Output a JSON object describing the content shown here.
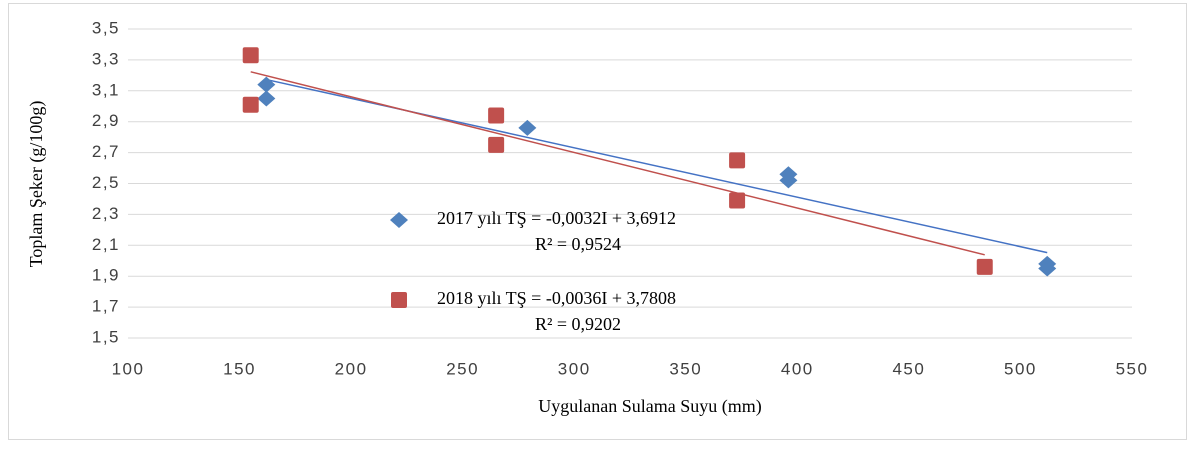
{
  "chart_data": {
    "type": "scatter",
    "xlabel": "Uygulanan Sulama Suyu (mm)",
    "ylabel": "Toplam Şeker (g/100g)",
    "xlim": [
      100,
      550
    ],
    "xticks": [
      100,
      150,
      200,
      250,
      300,
      350,
      400,
      450,
      500,
      550
    ],
    "ylim": [
      1.5,
      3.5
    ],
    "yticks": [
      {
        "value": 1.5,
        "label": "1,5"
      },
      {
        "value": 1.7,
        "label": "1,7"
      },
      {
        "value": 1.9,
        "label": "1,9"
      },
      {
        "value": 2.1,
        "label": "2,1"
      },
      {
        "value": 2.3,
        "label": "2,3"
      },
      {
        "value": 2.5,
        "label": "2,5"
      },
      {
        "value": 2.7,
        "label": "2,7"
      },
      {
        "value": 2.9,
        "label": "2,9"
      },
      {
        "value": 3.1,
        "label": "3,1"
      },
      {
        "value": 3.3,
        "label": "3,3"
      },
      {
        "value": 3.5,
        "label": "3,5"
      }
    ],
    "grid": true,
    "series": [
      {
        "name": "2017 yılı TŞ = -0,0032I + 3,6912",
        "color": "#4f81bd",
        "marker": "diamond",
        "trend_color": "#4472c4",
        "x": [
          162,
          162,
          279,
          396,
          396,
          512,
          512
        ],
        "values": [
          3.14,
          3.05,
          2.86,
          2.56,
          2.52,
          1.98,
          1.95
        ],
        "trendline": {
          "slope": -0.0032,
          "intercept": 3.6912,
          "r2_label": "R² = 0,9524"
        }
      },
      {
        "name": "2018 yılı TŞ = -0,0036I + 3,7808",
        "color": "#c0504d",
        "marker": "square",
        "trend_color": "#c0504d",
        "x": [
          155,
          155,
          265,
          265,
          373,
          373,
          484
        ],
        "values": [
          3.33,
          3.01,
          2.94,
          2.75,
          2.65,
          2.39,
          1.96
        ],
        "trendline": {
          "slope": -0.0036,
          "intercept": 3.7808,
          "r2_label": "R² = 0,9202"
        }
      }
    ]
  }
}
